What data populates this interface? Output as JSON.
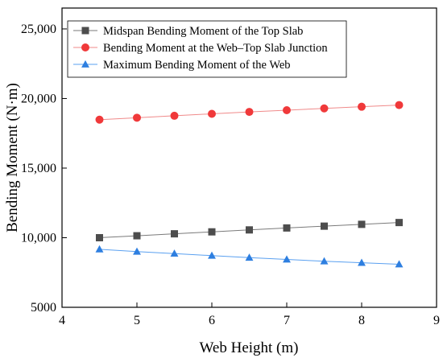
{
  "chart_data": {
    "type": "line",
    "xlabel": "Web Height (m)",
    "ylabel": "Bending Moment (N·m)",
    "xlim": [
      4,
      9
    ],
    "ylim": [
      5000,
      26500
    ],
    "xticks": [
      4,
      5,
      6,
      7,
      8,
      9
    ],
    "xtick_labels": [
      "4",
      "5",
      "6",
      "7",
      "8",
      "9"
    ],
    "yticks": [
      5000,
      10000,
      15000,
      20000,
      25000
    ],
    "ytick_labels": [
      "5000",
      "10,000",
      "15,000",
      "20,000",
      "25,000"
    ],
    "grid": false,
    "legend_position": "top-left",
    "x": [
      4.5,
      5,
      5.5,
      6,
      6.5,
      7,
      7.5,
      8,
      8.5
    ],
    "series": [
      {
        "name": "Midspan Bending Moment of the Top Slab",
        "marker": "square",
        "color": "#4d4d4d",
        "line_color": "#7a7a7a",
        "values": [
          10000,
          10140,
          10280,
          10420,
          10560,
          10700,
          10830,
          10960,
          11090
        ]
      },
      {
        "name": "Bending Moment at the Web–Top Slab Junction",
        "marker": "circle",
        "color": "#f0393a",
        "line_color": "#f08a8a",
        "values": [
          18480,
          18620,
          18760,
          18900,
          19040,
          19160,
          19290,
          19410,
          19530
        ]
      },
      {
        "name": "Maximum Bending Moment of the Web",
        "marker": "triangle",
        "color": "#2e7fe0",
        "line_color": "#5aa0f0",
        "values": [
          9170,
          9000,
          8860,
          8710,
          8570,
          8440,
          8310,
          8200,
          8090
        ]
      }
    ]
  }
}
